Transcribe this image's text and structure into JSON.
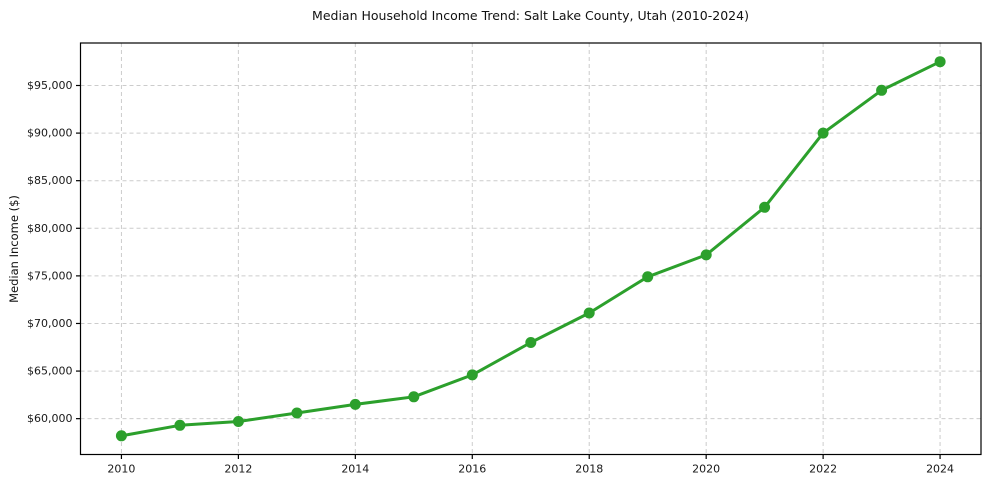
{
  "chart_data": {
    "type": "line",
    "title": "Median Household Income Trend: Salt Lake County, Utah (2010-2024)",
    "xlabel": "",
    "ylabel": "Median Income ($)",
    "x": [
      2010,
      2011,
      2012,
      2013,
      2014,
      2015,
      2016,
      2017,
      2018,
      2019,
      2020,
      2021,
      2022,
      2023,
      2024
    ],
    "values": [
      58200,
      59300,
      59700,
      60600,
      61500,
      62300,
      64600,
      68000,
      71100,
      74900,
      77200,
      82200,
      90000,
      94500,
      97500
    ],
    "xlim": [
      2009.3,
      2024.7
    ],
    "ylim": [
      56235,
      99465
    ],
    "xticks": [
      2010,
      2012,
      2014,
      2016,
      2018,
      2020,
      2022,
      2024
    ],
    "xtick_labels": [
      "2010",
      "2012",
      "2014",
      "2016",
      "2018",
      "2020",
      "2022",
      "2024"
    ],
    "yticks": [
      60000,
      65000,
      70000,
      75000,
      80000,
      85000,
      90000,
      95000
    ],
    "ytick_labels": [
      "$60,000",
      "$65,000",
      "$70,000",
      "$75,000",
      "$80,000",
      "$85,000",
      "$90,000",
      "$95,000"
    ],
    "grid": true,
    "grid_style": "dashed",
    "legend_position": "none",
    "line_color": "#2ca02c",
    "marker": "circle",
    "grid_color": "#cccccc",
    "spine_color": "#000000",
    "background_color": "#ffffff"
  }
}
